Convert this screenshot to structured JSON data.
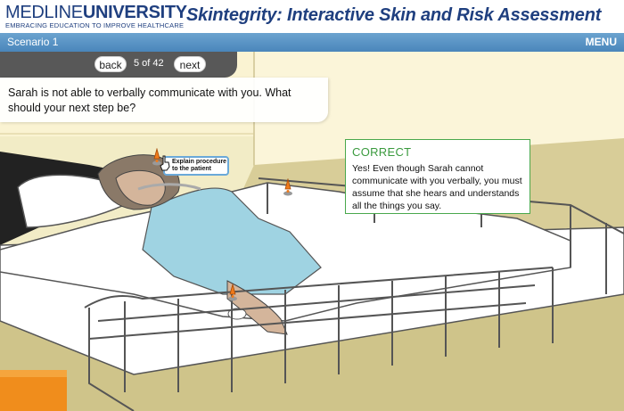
{
  "header": {
    "logo_light": "MEDLINE",
    "logo_bold": "UNIVERSITY",
    "logo_tagline": "EMBRACING EDUCATION TO IMPROVE HEALTHCARE",
    "course_title": "Skintegrity: Interactive Skin and Risk Assessment"
  },
  "bar": {
    "scenario_label": "Scenario 1",
    "menu_label": "MENU"
  },
  "nav": {
    "back_label": "back",
    "page_count": "5 of 42",
    "next_label": "next"
  },
  "question": {
    "text": "Sarah is not able to verbally communicate with you.  What should your next step be?"
  },
  "feedback": {
    "title": "CORRECT",
    "text": "Yes! Even though Sarah cannot communicate with you verbally, you must assume that she hears and understands all the things you say."
  },
  "tooltip": {
    "text": "Explain procedure to the patient"
  },
  "colors": {
    "brand_blue": "#1f3f7f",
    "bar_blue": "#4a86bb",
    "correct_green": "#3a9a3e",
    "hotspot_orange": "#f07a1a"
  },
  "icons": [
    "hotspot-icon",
    "pointer-hand-icon"
  ]
}
